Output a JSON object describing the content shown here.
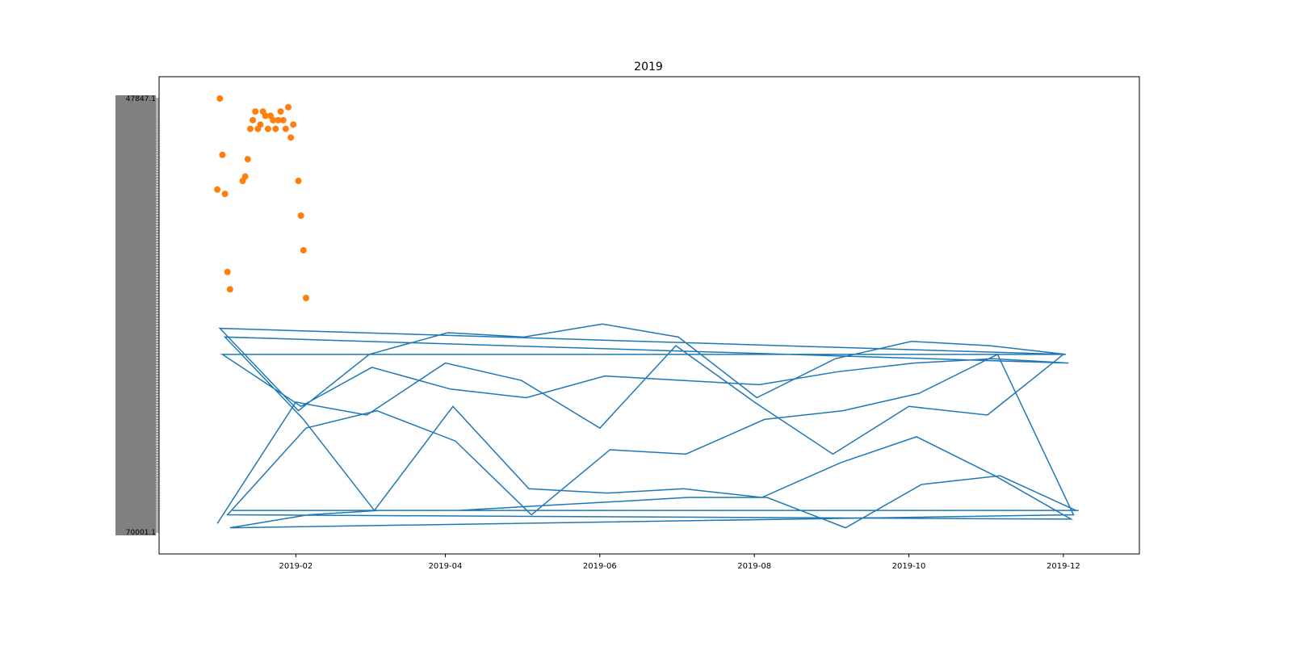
{
  "chart_data": {
    "type": "line",
    "title": "2019",
    "xlabel": "",
    "ylabel": "",
    "x_tick_labels": [
      "2019-02",
      "2019-04",
      "2019-06",
      "2019-08",
      "2019-10",
      "2019-12"
    ],
    "x_tick_positions": [
      "2019-02-01",
      "2019-04-01",
      "2019-06-01",
      "2019-08-01",
      "2019-10-01",
      "2019-12-01"
    ],
    "xlim": [
      "2018-12-09",
      "2019-12-31"
    ],
    "y_tick_labels_note": "categorical y axis with ~270 overlapping, illegible tick labels",
    "y_tick_labels_visible": [
      "47847.1",
      "70001.1"
    ],
    "grid": false,
    "legend": "none",
    "colors": {
      "line": "#1f77b4",
      "scatter": "#ff7f0e"
    },
    "series": [
      {
        "type": "line",
        "points": [
          [
            "2019-01-01",
            0.02
          ],
          [
            "2019-02-01",
            0.3
          ],
          [
            "2019-03-01",
            0.27
          ],
          [
            "2019-04-01",
            0.39
          ],
          [
            "2019-05-01",
            0.35
          ],
          [
            "2019-06-01",
            0.24
          ],
          [
            "2019-07-01",
            0.43
          ],
          [
            "2019-08-01",
            0.3
          ],
          [
            "2019-09-01",
            0.18
          ],
          [
            "2019-10-01",
            0.29
          ],
          [
            "2019-11-01",
            0.27
          ],
          [
            "2019-12-01",
            0.41
          ],
          [
            "2019-01-02",
            0.47
          ],
          [
            "2019-02-02",
            0.28
          ],
          [
            "2019-03-02",
            0.41
          ],
          [
            "2019-04-02",
            0.46
          ],
          [
            "2019-05-02",
            0.45
          ],
          [
            "2019-06-02",
            0.48
          ],
          [
            "2019-07-02",
            0.45
          ],
          [
            "2019-08-02",
            0.31
          ],
          [
            "2019-09-02",
            0.4
          ],
          [
            "2019-10-02",
            0.44
          ],
          [
            "2019-11-02",
            0.43
          ],
          [
            "2019-12-02",
            0.41
          ],
          [
            "2019-01-03",
            0.41
          ],
          [
            "2019-02-03",
            0.29
          ],
          [
            "2019-03-03",
            0.38
          ],
          [
            "2019-04-03",
            0.33
          ],
          [
            "2019-05-03",
            0.31
          ],
          [
            "2019-06-03",
            0.36
          ],
          [
            "2019-07-03",
            0.35
          ],
          [
            "2019-08-03",
            0.34
          ],
          [
            "2019-09-03",
            0.37
          ],
          [
            "2019-10-03",
            0.39
          ],
          [
            "2019-11-03",
            0.4
          ],
          [
            "2019-12-03",
            0.39
          ],
          [
            "2019-01-04",
            0.45
          ],
          [
            "2019-02-04",
            0.26
          ],
          [
            "2019-03-04",
            0.05
          ],
          [
            "2019-04-04",
            0.29
          ],
          [
            "2019-05-04",
            0.1
          ],
          [
            "2019-06-04",
            0.09
          ],
          [
            "2019-07-04",
            0.1
          ],
          [
            "2019-08-04",
            0.08
          ],
          [
            "2019-09-04",
            0.16
          ],
          [
            "2019-10-04",
            0.22
          ],
          [
            "2019-11-04",
            0.13
          ],
          [
            "2019-12-04",
            0.03
          ],
          [
            "2019-01-05",
            0.04
          ],
          [
            "2019-02-05",
            0.24
          ],
          [
            "2019-03-05",
            0.28
          ],
          [
            "2019-04-05",
            0.21
          ],
          [
            "2019-05-05",
            0.04
          ],
          [
            "2019-06-05",
            0.19
          ],
          [
            "2019-07-05",
            0.18
          ],
          [
            "2019-08-05",
            0.26
          ],
          [
            "2019-09-05",
            0.28
          ],
          [
            "2019-10-05",
            0.32
          ],
          [
            "2019-11-05",
            0.41
          ],
          [
            "2019-12-05",
            0.04
          ],
          [
            "2019-01-06",
            0.01
          ],
          [
            "2019-02-06",
            0.04
          ],
          [
            "2019-03-06",
            0.05
          ],
          [
            "2019-04-06",
            0.05
          ],
          [
            "2019-05-06",
            0.06
          ],
          [
            "2019-06-06",
            0.07
          ],
          [
            "2019-07-06",
            0.08
          ],
          [
            "2019-08-06",
            0.08
          ],
          [
            "2019-09-06",
            0.01
          ],
          [
            "2019-10-06",
            0.11
          ],
          [
            "2019-11-06",
            0.13
          ],
          [
            "2019-12-06",
            0.05
          ],
          [
            "2019-01-07",
            0.05
          ],
          [
            "2019-02-07",
            0.05
          ],
          [
            "2019-03-07",
            0.05
          ],
          [
            "2019-04-07",
            0.05
          ],
          [
            "2019-05-07",
            0.05
          ],
          [
            "2019-06-07",
            0.05
          ],
          [
            "2019-07-07",
            0.05
          ],
          [
            "2019-08-07",
            0.05
          ],
          [
            "2019-09-07",
            0.05
          ],
          [
            "2019-10-07",
            0.05
          ],
          [
            "2019-11-07",
            0.05
          ],
          [
            "2019-12-07",
            0.05
          ]
        ]
      },
      {
        "type": "scatter",
        "points": [
          [
            "2019-01-01",
            0.79
          ],
          [
            "2019-01-02",
            1.0
          ],
          [
            "2019-01-03",
            0.87
          ],
          [
            "2019-01-04",
            0.78
          ],
          [
            "2019-01-05",
            0.6
          ],
          [
            "2019-01-06",
            0.56
          ],
          [
            "2019-01-11",
            0.81
          ],
          [
            "2019-01-12",
            0.82
          ],
          [
            "2019-01-13",
            0.86
          ],
          [
            "2019-01-14",
            0.93
          ],
          [
            "2019-01-15",
            0.95
          ],
          [
            "2019-01-16",
            0.97
          ],
          [
            "2019-01-17",
            0.93
          ],
          [
            "2019-01-18",
            0.94
          ],
          [
            "2019-01-19",
            0.97
          ],
          [
            "2019-01-20",
            0.96
          ],
          [
            "2019-01-21",
            0.93
          ],
          [
            "2019-01-22",
            0.96
          ],
          [
            "2019-01-23",
            0.95
          ],
          [
            "2019-01-24",
            0.93
          ],
          [
            "2019-01-25",
            0.95
          ],
          [
            "2019-01-26",
            0.97
          ],
          [
            "2019-01-27",
            0.95
          ],
          [
            "2019-01-28",
            0.93
          ],
          [
            "2019-01-29",
            0.98
          ],
          [
            "2019-01-30",
            0.91
          ],
          [
            "2019-01-31",
            0.94
          ],
          [
            "2019-02-02",
            0.81
          ],
          [
            "2019-02-03",
            0.73
          ],
          [
            "2019-02-04",
            0.65
          ],
          [
            "2019-02-05",
            0.54
          ]
        ]
      }
    ]
  }
}
